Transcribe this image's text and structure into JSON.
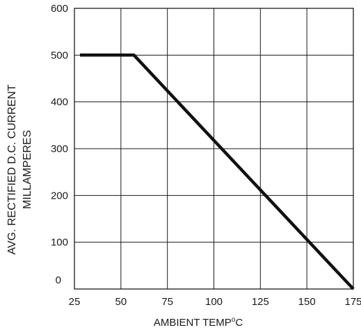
{
  "chart_data": {
    "type": "line",
    "ylabel_line1": "AVG. RECTIFIED D.C.  CURRENT",
    "ylabel_line2": "MILLAMPERES",
    "xlabel_main": "AMBIENT  TEMP",
    "xlabel_deg": "o",
    "xlabel_unit": "C",
    "xlim": [
      25,
      175
    ],
    "ylim": [
      0,
      600
    ],
    "x_ticks": [
      "25",
      "50",
      "75",
      "100",
      "125",
      "150",
      "175"
    ],
    "y_ticks": [
      "0",
      "100",
      "200",
      "300",
      "400",
      "500",
      "600"
    ],
    "grid": true,
    "series": [
      {
        "x": [
          28,
          57,
          175
        ],
        "y": [
          500,
          500,
          0
        ]
      }
    ]
  }
}
